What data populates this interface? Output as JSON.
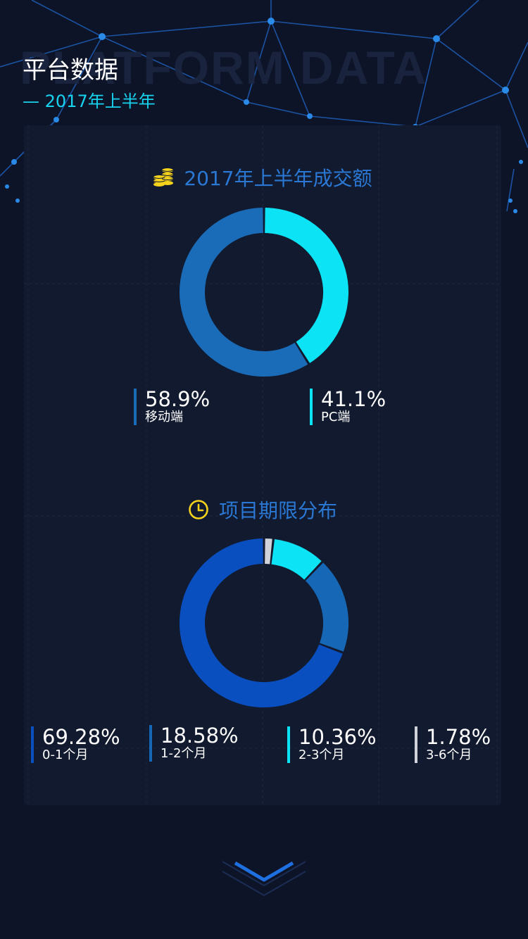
{
  "header": {
    "title": "平台数据",
    "subtitle": "— 2017年上半年",
    "watermark": "PLATFORM DATA"
  },
  "sections": {
    "turnover": {
      "title": "2017年上半年成交额",
      "icon": "coins-icon"
    },
    "term": {
      "title": "项目期限分布",
      "icon": "clock-icon"
    }
  },
  "legends": {
    "turnover": [
      {
        "value": "58.9%",
        "label": "移动端"
      },
      {
        "value": "41.1%",
        "label": "PC端"
      }
    ],
    "term": [
      {
        "value": "69.28%",
        "label": "0-1个月"
      },
      {
        "value": "18.58%",
        "label": "1-2个月"
      },
      {
        "value": "10.36%",
        "label": "2-3个月"
      },
      {
        "value": "1.78%",
        "label": "3-6个月"
      }
    ]
  },
  "chart_data": [
    {
      "type": "pie",
      "title": "2017年上半年成交额",
      "categories": [
        "移动端",
        "PC端"
      ],
      "values": [
        58.9,
        41.1
      ],
      "colors": [
        "#1a6bb8",
        "#0ce3f5"
      ],
      "donut": true,
      "start": "12 o'clock",
      "direction": "clockwise",
      "order": [
        "PC端",
        "移动端"
      ]
    },
    {
      "type": "pie",
      "title": "项目期限分布",
      "categories": [
        "0-1个月",
        "1-2个月",
        "2-3个月",
        "3-6个月"
      ],
      "values": [
        69.28,
        18.58,
        10.36,
        1.78
      ],
      "colors": [
        "#0a4fc0",
        "#1668b6",
        "#0ce3f5",
        "#d0d4da"
      ],
      "donut": true,
      "start": "12 o'clock",
      "direction": "clockwise",
      "order": [
        "3-6个月",
        "2-3个月",
        "1-2个月",
        "0-1个月"
      ]
    }
  ],
  "theme": {
    "background": "#0d1428",
    "card": "#111a2e",
    "accent_cyan": "#18d3ee",
    "accent_blue": "#2a78d4",
    "icon_yellow": "#f5d21c",
    "network_line": "#1e5fb8"
  }
}
